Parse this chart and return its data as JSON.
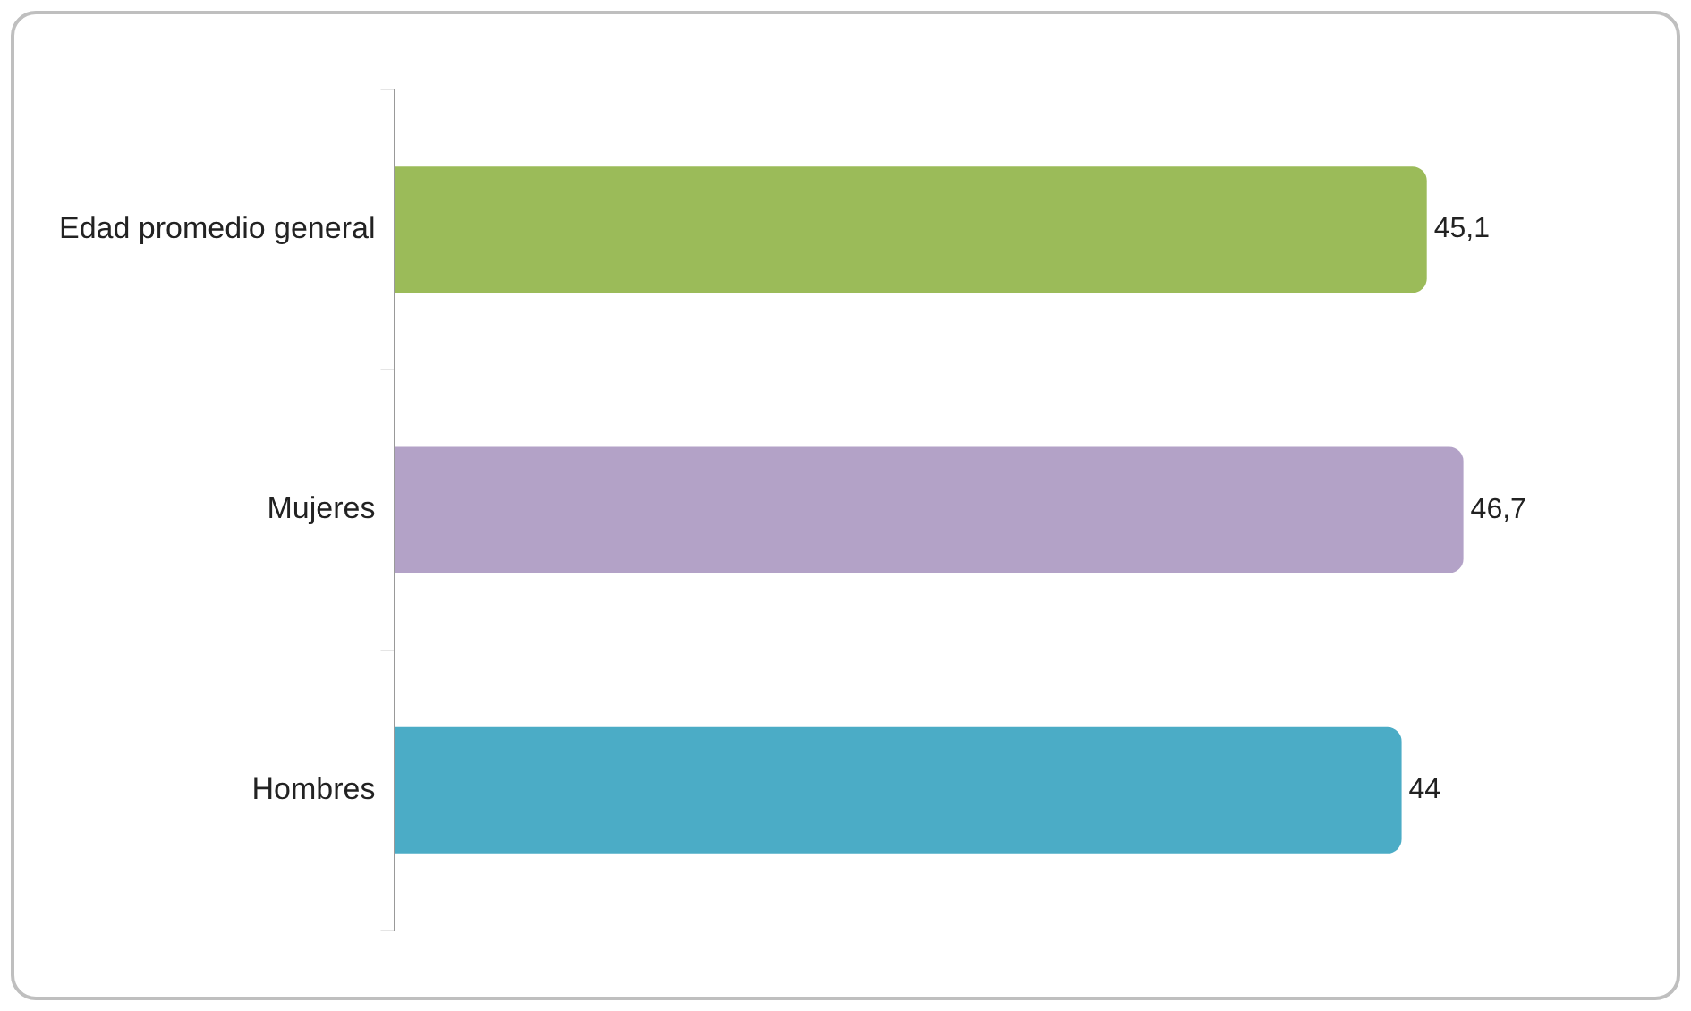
{
  "chart_data": {
    "type": "bar",
    "orientation": "horizontal",
    "categories": [
      "Edad promedio general",
      "Mujeres",
      "Hombres"
    ],
    "values": [
      45.1,
      46.7,
      44
    ],
    "colors": [
      "#9bbb59",
      "#b3a2c7",
      "#4bacc6"
    ],
    "value_labels": [
      "45,1",
      "46,7",
      "44"
    ],
    "grid": false,
    "legend": false
  }
}
